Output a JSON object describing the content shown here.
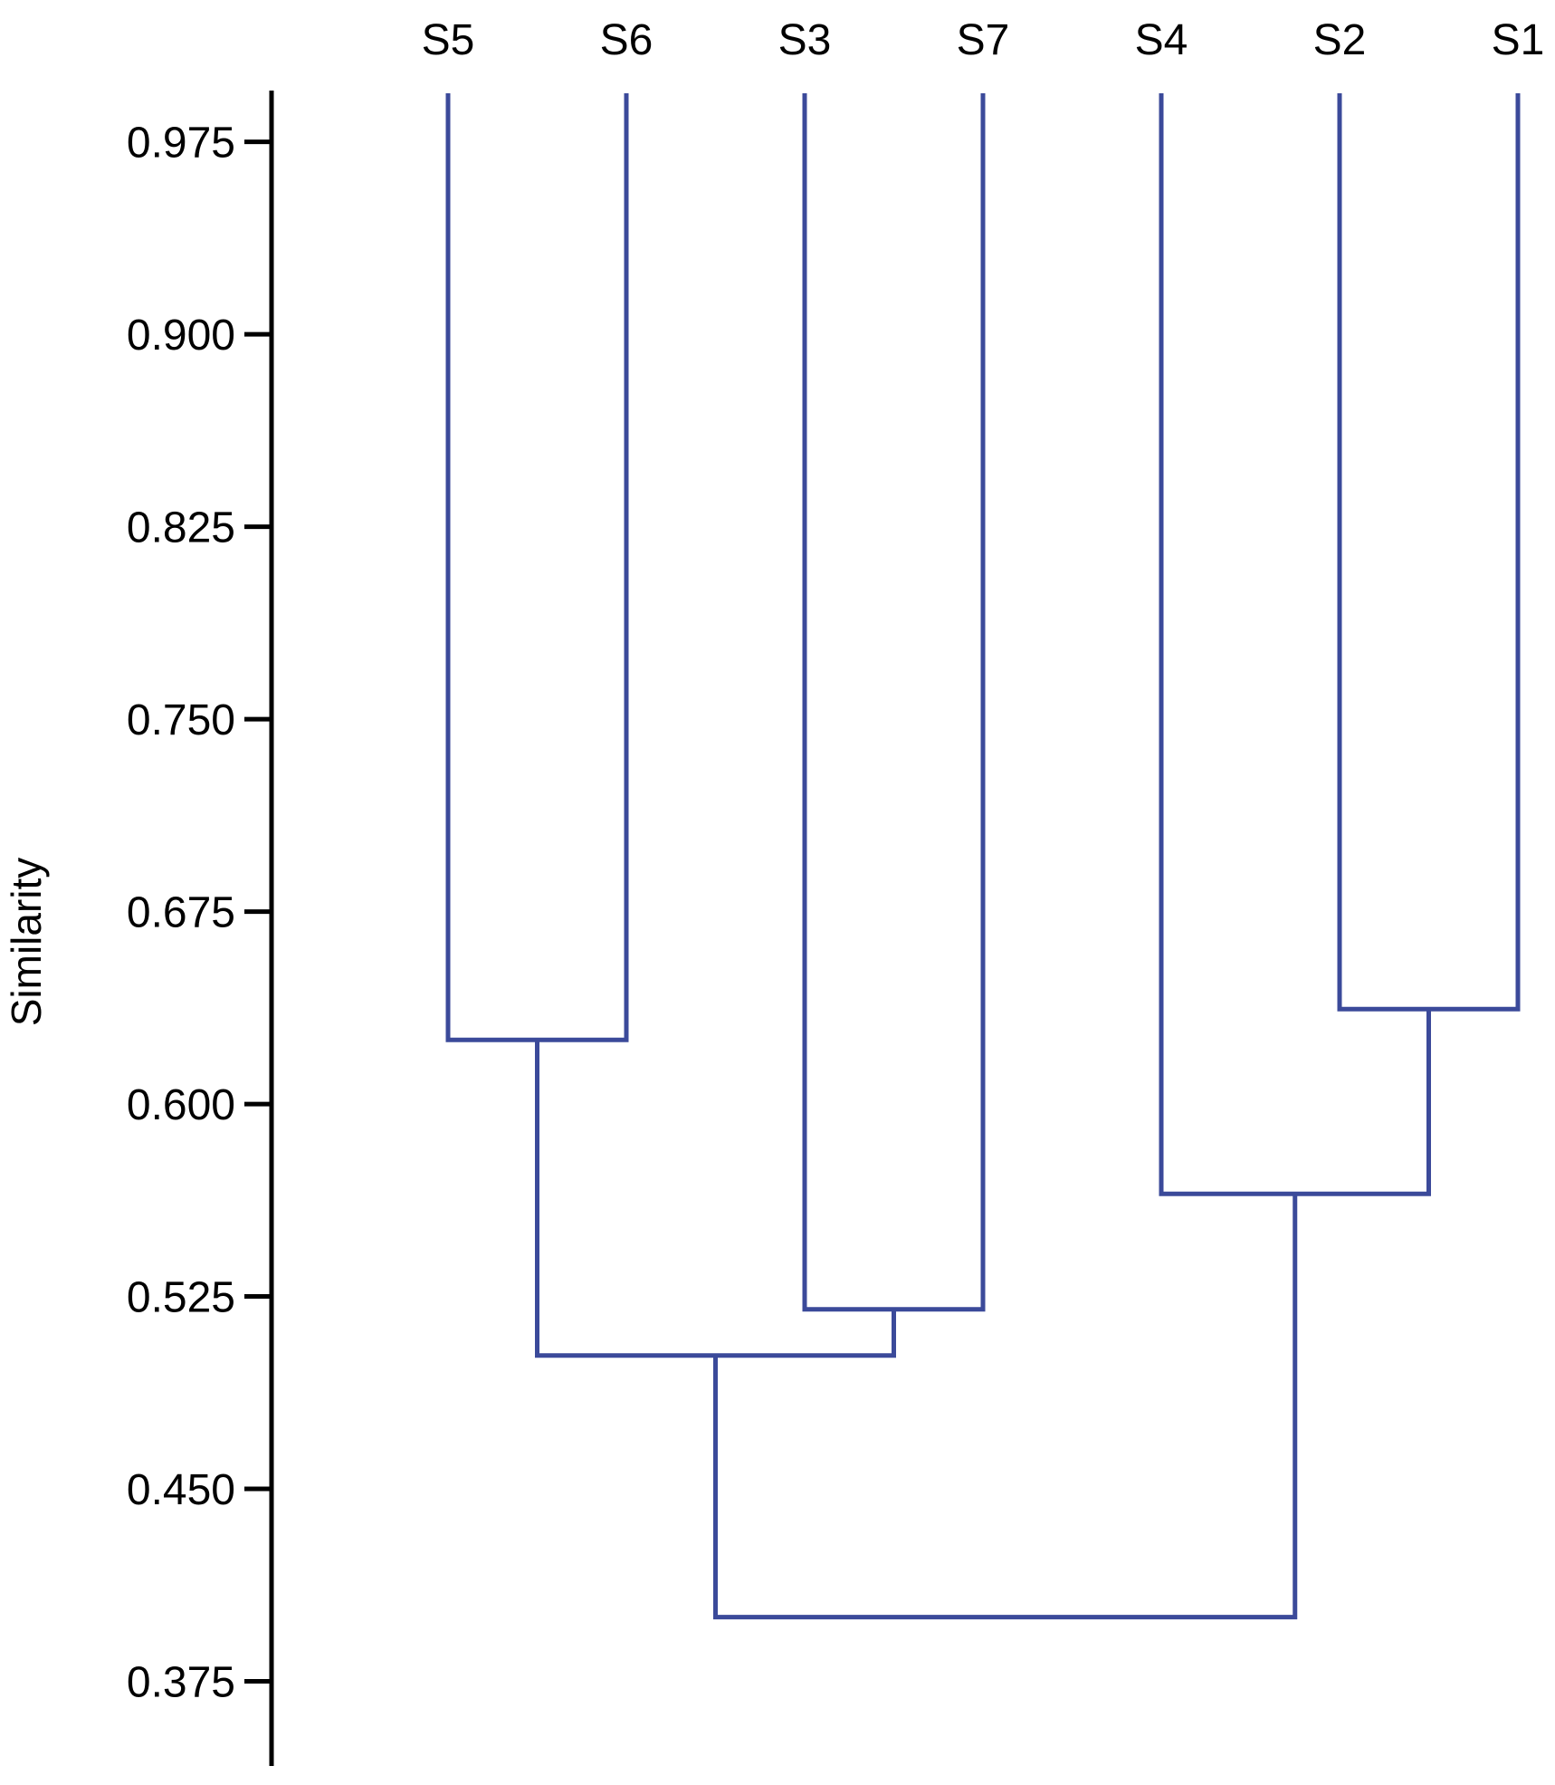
{
  "chart_data": {
    "type": "dendrogram",
    "ylabel": "Similarity",
    "ylim": [
      0.342,
      0.995
    ],
    "yticks": [
      "0.975",
      "0.900",
      "0.825",
      "0.750",
      "0.675",
      "0.600",
      "0.525",
      "0.450",
      "0.375"
    ],
    "leaves": [
      "S5",
      "S6",
      "S3",
      "S7",
      "S4",
      "S2",
      "S1"
    ],
    "merges": [
      {
        "left": "S5",
        "right": "S6",
        "similarity": 0.625,
        "id": "A"
      },
      {
        "left": "S3",
        "right": "S7",
        "similarity": 0.52,
        "id": "B"
      },
      {
        "left": "S2",
        "right": "S1",
        "similarity": 0.637,
        "id": "C"
      },
      {
        "left": "A",
        "right": "B",
        "similarity": 0.502,
        "id": "D"
      },
      {
        "left": "S4",
        "right": "C",
        "similarity": 0.565,
        "id": "E"
      },
      {
        "left": "D",
        "right": "E",
        "similarity": 0.4,
        "id": "F"
      }
    ],
    "colors": {
      "branch": "#3b4a9a",
      "axis": "#000000"
    },
    "grid": false
  }
}
